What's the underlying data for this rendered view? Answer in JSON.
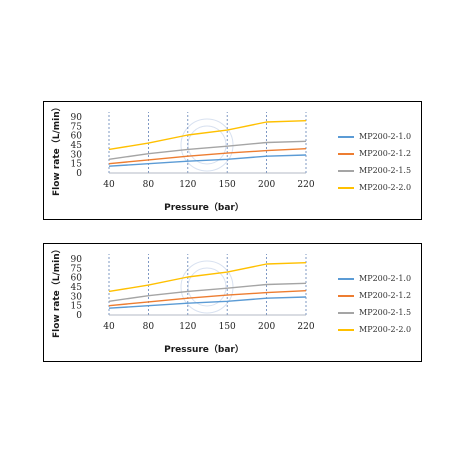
{
  "chart_data": [
    {
      "type": "line",
      "xlabel": "Pressure（bar）",
      "ylabel": "Flow rate（L/min）",
      "categories": [
        "40",
        "80",
        "120",
        "150",
        "200",
        "220"
      ],
      "y_ticks": [
        0,
        15,
        30,
        45,
        60,
        75,
        90
      ],
      "ylim": [
        0,
        90
      ],
      "grid": "vertical dashed",
      "legend": "right",
      "series": [
        {
          "name": "MP200-2-1.0",
          "color": "#5b9bd5",
          "values": [
            11,
            15,
            19,
            22,
            27,
            29
          ]
        },
        {
          "name": "MP200-2-1.2",
          "color": "#ed7d31",
          "values": [
            15,
            21,
            27,
            32,
            36,
            39
          ]
        },
        {
          "name": "MP200-2-1.5",
          "color": "#a5a5a5",
          "values": [
            22,
            31,
            38,
            43,
            49,
            51
          ]
        },
        {
          "name": "MP200-2-2.0",
          "color": "#ffc000",
          "values": [
            38,
            48,
            61,
            69,
            82,
            84
          ]
        }
      ]
    },
    {
      "type": "line",
      "xlabel": "Pressure（bar）",
      "ylabel": "Flow rate（L/min）",
      "categories": [
        "40",
        "80",
        "120",
        "150",
        "200",
        "220"
      ],
      "y_ticks": [
        0,
        15,
        30,
        45,
        60,
        75,
        90
      ],
      "ylim": [
        0,
        90
      ],
      "grid": "vertical dashed",
      "legend": "right",
      "series": [
        {
          "name": "MP200-2-1.0",
          "color": "#5b9bd5",
          "values": [
            11,
            15,
            19,
            22,
            27,
            29
          ]
        },
        {
          "name": "MP200-2-1.2",
          "color": "#ed7d31",
          "values": [
            15,
            21,
            27,
            32,
            36,
            39
          ]
        },
        {
          "name": "MP200-2-1.5",
          "color": "#a5a5a5",
          "values": [
            22,
            31,
            38,
            43,
            49,
            51
          ]
        },
        {
          "name": "MP200-2-2.0",
          "color": "#ffc000",
          "values": [
            38,
            48,
            61,
            69,
            82,
            84
          ]
        }
      ]
    }
  ]
}
